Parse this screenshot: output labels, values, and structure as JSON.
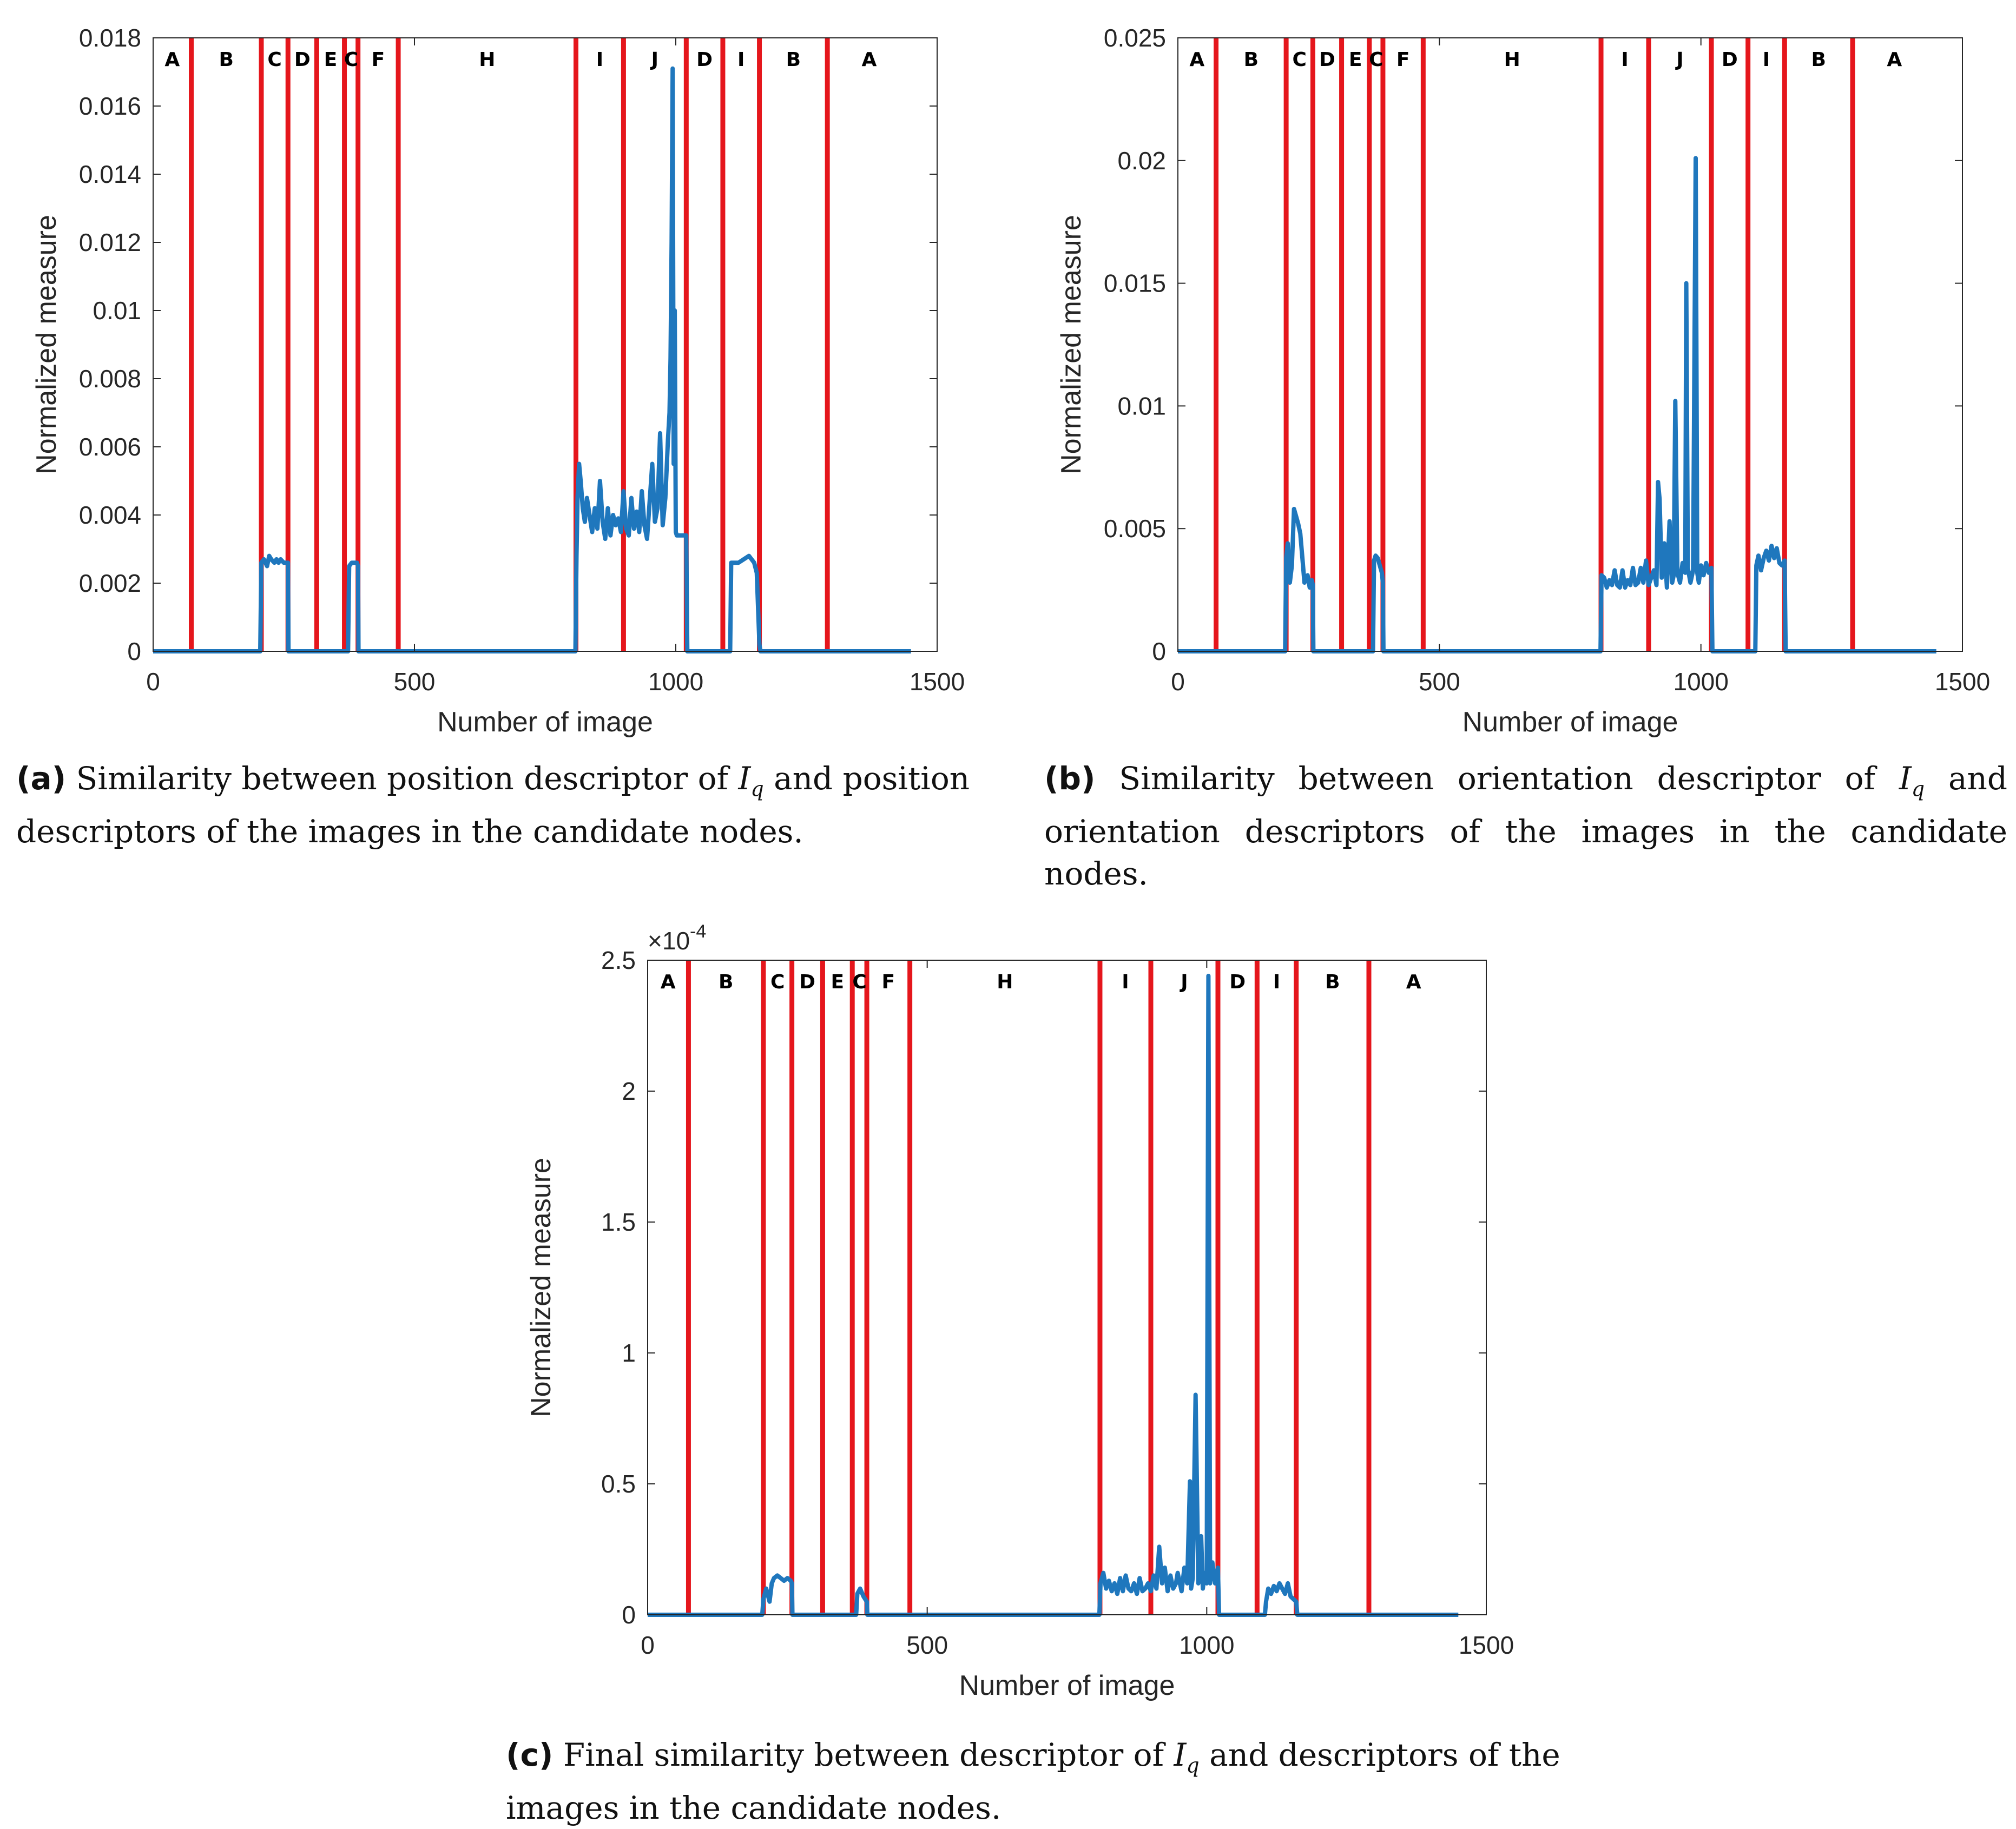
{
  "figure": {
    "shared": {
      "xlabel": "Number of image",
      "ylabel": "Normalized measure",
      "regions": [
        "A",
        "B",
        "C",
        "D",
        "E",
        "C",
        "F",
        "H",
        "I",
        "J",
        "D",
        "I",
        "B",
        "A"
      ],
      "boundaries": [
        73,
        207,
        258,
        313,
        366,
        392,
        469,
        809,
        900,
        1020,
        1090,
        1160,
        1290
      ],
      "colors": {
        "series": "#1f77bd",
        "boundary": "#e5161c",
        "axis": "#262626"
      }
    },
    "captions": {
      "a": {
        "letter": "(a)",
        "pre": "Similarity between position descriptor of ",
        "iq": "I",
        "iq_sub": "q",
        "post": " and position descriptors of the images in the candidate nodes."
      },
      "b": {
        "letter": "(b)",
        "pre": "Similarity between orientation descriptor of ",
        "iq": "I",
        "iq_sub": "q",
        "post": " and orientation descriptors of the images in the candidate nodes."
      },
      "c": {
        "letter": "(c)",
        "pre": "Final similarity between descriptor of ",
        "iq": "I",
        "iq_sub": "q",
        "post": " and descriptors of the images in the candidate nodes."
      }
    }
  },
  "chart_data": [
    {
      "id": "a",
      "type": "line",
      "title": "",
      "xlabel": "Number of image",
      "ylabel": "Normalized measure",
      "xlim": [
        0,
        1500
      ],
      "ylim": [
        0,
        0.018
      ],
      "xticks": [
        0,
        500,
        1000,
        1500
      ],
      "xtick_labels": [
        "0",
        "500",
        "1000",
        "1500"
      ],
      "yticks": [
        0,
        0.002,
        0.004,
        0.006,
        0.008,
        0.01,
        0.012,
        0.014,
        0.016,
        0.018
      ],
      "ytick_labels": [
        "0",
        "0.002",
        "0.004",
        "0.006",
        "0.008",
        "0.01",
        "0.012",
        "0.014",
        "0.016",
        "0.018"
      ],
      "exponent_label": "",
      "exponent_power": "",
      "series": [
        {
          "name": "similarity",
          "x": [
            0,
            205,
            207,
            212,
            218,
            222,
            226,
            232,
            236,
            240,
            244,
            250,
            258,
            259,
            373,
            375,
            380,
            390,
            392,
            393,
            808,
            810,
            812,
            815,
            818,
            822,
            826,
            830,
            835,
            840,
            845,
            850,
            855,
            860,
            865,
            870,
            875,
            880,
            885,
            890,
            895,
            900,
            905,
            910,
            915,
            920,
            925,
            930,
            935,
            940,
            945,
            950,
            955,
            960,
            965,
            970,
            975,
            980,
            985,
            988,
            990,
            992,
            994,
            996,
            998,
            1000,
            1002,
            1005,
            1010,
            1015,
            1020,
            1022,
            1104,
            1106,
            1110,
            1120,
            1130,
            1140,
            1150,
            1155,
            1160,
            1162,
            1450
          ],
          "y": [
            0,
            0,
            0.0026,
            0.0027,
            0.0025,
            0.0028,
            0.0027,
            0.0026,
            0.0027,
            0.0026,
            0.0027,
            0.0026,
            0.0026,
            0,
            0,
            0.0025,
            0.0026,
            0.0026,
            0.0025,
            0,
            0,
            0.0028,
            0.0045,
            0.0055,
            0.005,
            0.0042,
            0.0038,
            0.0045,
            0.004,
            0.0035,
            0.0042,
            0.0036,
            0.005,
            0.0038,
            0.0033,
            0.0042,
            0.0034,
            0.004,
            0.0037,
            0.0039,
            0.0035,
            0.0047,
            0.0036,
            0.0034,
            0.0045,
            0.0036,
            0.0041,
            0.0035,
            0.0047,
            0.0037,
            0.0033,
            0.0044,
            0.0055,
            0.0038,
            0.0042,
            0.0064,
            0.0037,
            0.0045,
            0.0062,
            0.007,
            0.0086,
            0.012,
            0.0171,
            0.0055,
            0.01,
            0.0035,
            0.0034,
            0.0034,
            0.0034,
            0.0034,
            0.0034,
            0,
            0,
            0.0026,
            0.0026,
            0.0026,
            0.0027,
            0.0028,
            0.0026,
            0.0023,
            0.0002,
            0,
            0
          ]
        }
      ]
    },
    {
      "id": "b",
      "type": "line",
      "title": "",
      "xlabel": "Number of image",
      "ylabel": "Normalized measure",
      "xlim": [
        0,
        1500
      ],
      "ylim": [
        0,
        0.025
      ],
      "xticks": [
        0,
        500,
        1000,
        1500
      ],
      "xtick_labels": [
        "0",
        "500",
        "1000",
        "1500"
      ],
      "yticks": [
        0,
        0.005,
        0.01,
        0.015,
        0.02,
        0.025
      ],
      "ytick_labels": [
        "0",
        "0.005",
        "0.01",
        "0.015",
        "0.02",
        "0.025"
      ],
      "exponent_label": "",
      "exponent_power": "",
      "series": [
        {
          "name": "similarity",
          "x": [
            0,
            205,
            207,
            210,
            214,
            218,
            222,
            226,
            230,
            234,
            238,
            242,
            248,
            252,
            256,
            258,
            259,
            373,
            375,
            378,
            382,
            386,
            390,
            392,
            393,
            808,
            810,
            815,
            820,
            825,
            830,
            835,
            840,
            845,
            850,
            855,
            860,
            865,
            870,
            875,
            880,
            885,
            890,
            895,
            900,
            905,
            910,
            915,
            918,
            921,
            925,
            930,
            935,
            940,
            945,
            948,
            951,
            955,
            960,
            965,
            970,
            972,
            975,
            980,
            985,
            990,
            993,
            996,
            1000,
            1005,
            1010,
            1015,
            1020,
            1022,
            1104,
            1106,
            1110,
            1115,
            1120,
            1125,
            1130,
            1135,
            1140,
            1145,
            1150,
            1155,
            1160,
            1162,
            1450
          ],
          "y": [
            0,
            0,
            0.0038,
            0.0044,
            0.0028,
            0.0035,
            0.0058,
            0.0055,
            0.0052,
            0.0048,
            0.0038,
            0.0028,
            0.0031,
            0.0026,
            0.0029,
            0.0027,
            0,
            0,
            0.0037,
            0.0039,
            0.0038,
            0.0035,
            0.0032,
            0.0028,
            0,
            0,
            0.0031,
            0.003,
            0.0026,
            0.0029,
            0.0027,
            0.0033,
            0.0027,
            0.0026,
            0.0033,
            0.0026,
            0.0029,
            0.0027,
            0.0034,
            0.0027,
            0.0028,
            0.0034,
            0.0028,
            0.0037,
            0.0027,
            0.003,
            0.0033,
            0.0027,
            0.0069,
            0.0062,
            0.003,
            0.0044,
            0.0026,
            0.0053,
            0.0028,
            0.0031,
            0.0102,
            0.0032,
            0.0028,
            0.0036,
            0.0032,
            0.015,
            0.0034,
            0.0028,
            0.0033,
            0.0201,
            0.0032,
            0.0028,
            0.0035,
            0.0031,
            0.0036,
            0.0032,
            0.0034,
            0,
            0,
            0.0035,
            0.0039,
            0.0033,
            0.0038,
            0.0041,
            0.0037,
            0.0043,
            0.0038,
            0.0042,
            0.0036,
            0.0035,
            0.0037,
            0,
            0
          ]
        }
      ]
    },
    {
      "id": "c",
      "type": "line",
      "title": "",
      "xlabel": "Number of image",
      "ylabel": "Normalized measure",
      "xlim": [
        0,
        1500
      ],
      "ylim": [
        0,
        2.5
      ],
      "xticks": [
        0,
        500,
        1000,
        1500
      ],
      "xtick_labels": [
        "0",
        "500",
        "1000",
        "1500"
      ],
      "yticks": [
        0,
        0.5,
        1,
        1.5,
        2,
        2.5
      ],
      "ytick_labels": [
        "0",
        "0.5",
        "1",
        "1.5",
        "2",
        "2.5"
      ],
      "exponent_label": "×10",
      "exponent_power": "-4",
      "series": [
        {
          "name": "similarity",
          "x": [
            0,
            205,
            207,
            212,
            218,
            222,
            226,
            232,
            238,
            244,
            250,
            256,
            258,
            259,
            373,
            375,
            380,
            386,
            392,
            393,
            808,
            810,
            815,
            820,
            825,
            830,
            835,
            840,
            845,
            850,
            855,
            860,
            865,
            870,
            875,
            880,
            885,
            890,
            895,
            900,
            905,
            910,
            915,
            920,
            925,
            930,
            935,
            940,
            945,
            948,
            951,
            955,
            960,
            965,
            970,
            972,
            975,
            980,
            985,
            990,
            993,
            996,
            1000,
            1003,
            1006,
            1010,
            1015,
            1020,
            1022,
            1104,
            1106,
            1110,
            1115,
            1120,
            1125,
            1130,
            1135,
            1140,
            1145,
            1150,
            1155,
            1160,
            1162,
            1450
          ],
          "y": [
            0,
            0,
            0.06,
            0.1,
            0.05,
            0.12,
            0.14,
            0.15,
            0.14,
            0.13,
            0.14,
            0.13,
            0.12,
            0,
            0,
            0.08,
            0.1,
            0.07,
            0.05,
            0,
            0,
            0.12,
            0.16,
            0.1,
            0.13,
            0.09,
            0.12,
            0.08,
            0.14,
            0.09,
            0.15,
            0.1,
            0.09,
            0.12,
            0.08,
            0.14,
            0.09,
            0.1,
            0.12,
            0.09,
            0.15,
            0.1,
            0.26,
            0.12,
            0.18,
            0.09,
            0.15,
            0.1,
            0.12,
            0.16,
            0.13,
            0.09,
            0.18,
            0.12,
            0.51,
            0.1,
            0.14,
            0.84,
            0.12,
            0.3,
            0.1,
            0.16,
            0.12,
            2.44,
            0.12,
            0.2,
            0.12,
            0.18,
            0,
            0,
            0.05,
            0.1,
            0.08,
            0.11,
            0.09,
            0.12,
            0.1,
            0.08,
            0.12,
            0.07,
            0.06,
            0.05,
            0,
            0
          ]
        }
      ]
    }
  ]
}
